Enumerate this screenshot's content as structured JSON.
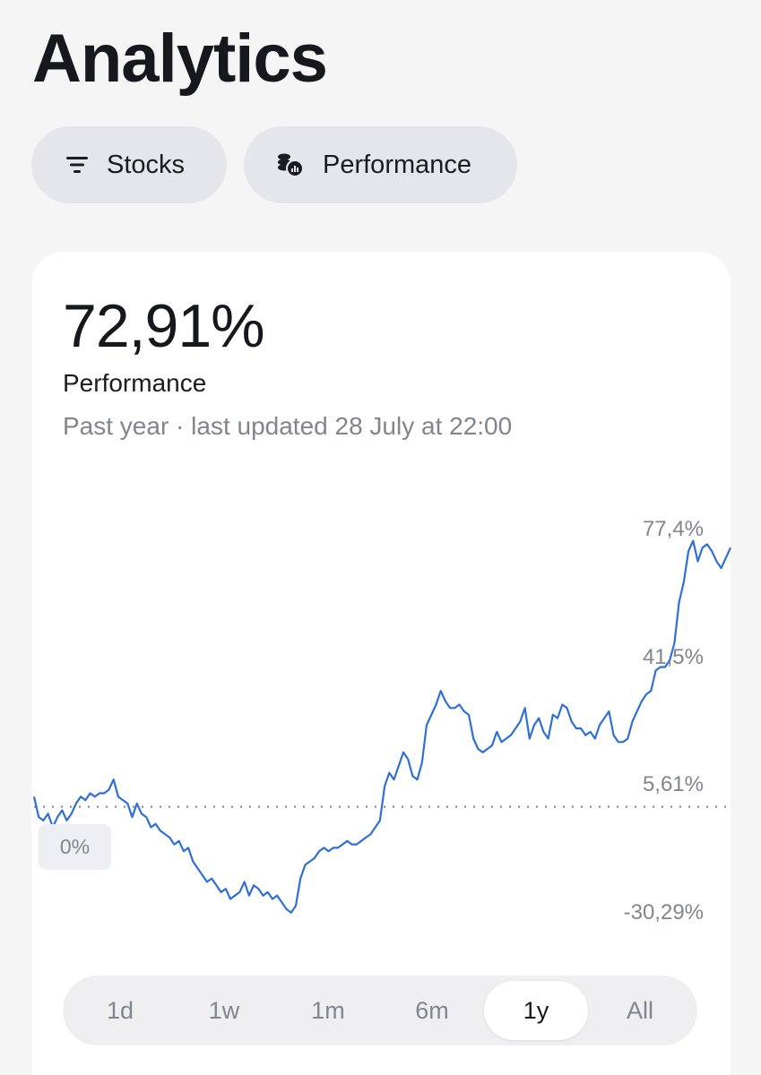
{
  "header": {
    "title": "Analytics"
  },
  "filters": [
    {
      "label": "Stocks",
      "icon": "filter-icon"
    },
    {
      "label": "Performance",
      "icon": "coins-chart-icon"
    }
  ],
  "summary": {
    "value": "72,91%",
    "label": "Performance",
    "subtitle": "Past year · last updated 28 July at 22:00"
  },
  "chart_data": {
    "type": "line",
    "ylim": [
      -30.29,
      77.4
    ],
    "y_tick_labels": [
      "77,4%",
      "41,5%",
      "5,61%",
      "-30,29%"
    ],
    "baseline_label": "0%",
    "baseline_value": 0,
    "line_color": "#2f6fd6",
    "series": [
      {
        "values": [
          3,
          -3,
          -4,
          -2,
          -6,
          -3,
          -1,
          -4,
          -2,
          1,
          3,
          2,
          4,
          3,
          4,
          4,
          5,
          8,
          3,
          2,
          1,
          -3,
          1,
          -2,
          -3,
          -6,
          -5,
          -7,
          -8,
          -9,
          -11,
          -10,
          -13,
          -12,
          -16,
          -18,
          -20,
          -22,
          -21,
          -23,
          -25,
          -24,
          -27,
          -26,
          -25,
          -22,
          -26,
          -23,
          -24,
          -26,
          -25,
          -27,
          -26,
          -28,
          -30,
          -31,
          -29,
          -21,
          -17,
          -16,
          -15,
          -13,
          -12,
          -13,
          -12,
          -12,
          -11,
          -10,
          -11,
          -11,
          -10,
          -9,
          -8,
          -6,
          -4,
          6,
          10,
          8,
          12,
          16,
          14,
          9,
          8,
          13,
          24,
          27,
          30,
          34,
          31,
          29,
          29,
          30,
          28,
          27,
          20,
          17,
          16,
          17,
          18,
          22,
          19,
          20,
          21,
          23,
          25,
          29,
          20,
          24,
          26,
          22,
          20,
          27,
          26,
          30,
          29,
          25,
          23,
          23,
          21,
          22,
          20,
          24,
          26,
          28,
          21,
          19,
          19,
          20,
          25,
          28,
          31,
          33,
          34,
          40,
          41,
          41,
          43,
          48,
          60,
          66,
          75,
          78,
          72,
          76,
          77,
          75,
          72,
          70,
          73,
          76
        ]
      }
    ],
    "time_ranges": [
      "1d",
      "1w",
      "1m",
      "6m",
      "1y",
      "All"
    ],
    "selected_range": "1y"
  }
}
